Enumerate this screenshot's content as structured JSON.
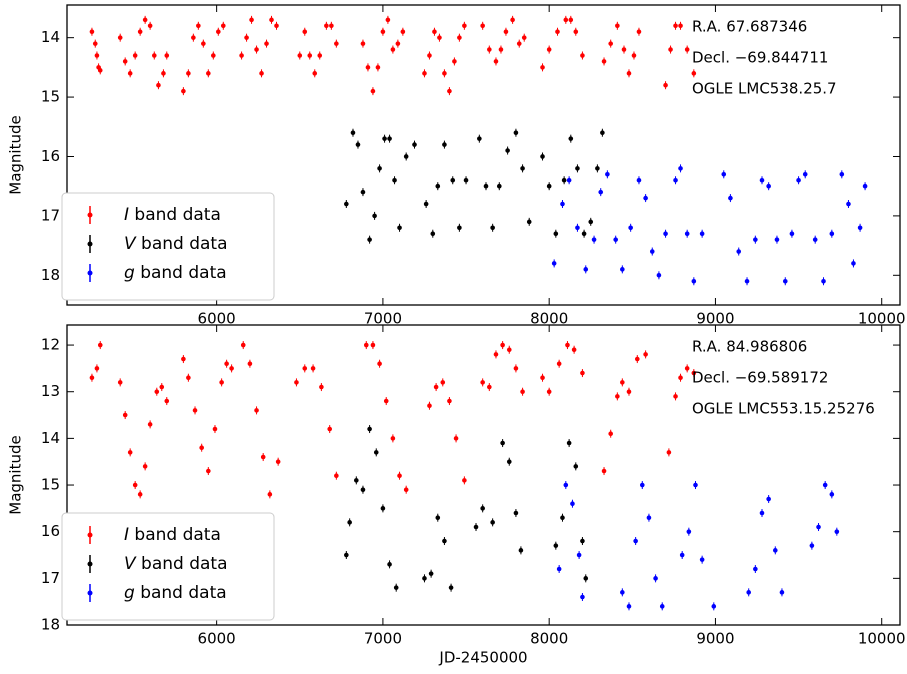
{
  "chart_data": [
    {
      "type": "scatter",
      "ylabel": "Magnitude",
      "xlim": [
        5100,
        10110
      ],
      "ylim": [
        13.45,
        18.5
      ],
      "y_inverted": true,
      "xticks": [
        6000,
        7000,
        8000,
        9000,
        10000
      ],
      "yticks": [
        14,
        15,
        16,
        17,
        18
      ],
      "legend": "lower left",
      "annotations": [
        "R.A. 67.687346",
        "Decl. −69.844711",
        "OGLE LMC538.25.7"
      ],
      "series": [
        {
          "name": "I band data",
          "color": "#ff0000",
          "x": [
            5250,
            5270,
            5280,
            5290,
            5300,
            5420,
            5450,
            5480,
            5510,
            5540,
            5570,
            5600,
            5625,
            5650,
            5680,
            5700,
            5800,
            5830,
            5860,
            5890,
            5920,
            5950,
            5980,
            6010,
            6040,
            6150,
            6180,
            6210,
            6240,
            6270,
            6300,
            6330,
            6360,
            6500,
            6530,
            6560,
            6590,
            6620,
            6660,
            6690,
            6720,
            6880,
            6910,
            6940,
            6970,
            7000,
            7030,
            7060,
            7090,
            7120,
            7250,
            7280,
            7310,
            7340,
            7370,
            7400,
            7430,
            7460,
            7490,
            7600,
            7640,
            7680,
            7710,
            7740,
            7780,
            7820,
            7850,
            7960,
            8000,
            8050,
            8100,
            8130,
            8160,
            8200,
            8330,
            8370,
            8410,
            8450,
            8480,
            8510,
            8540,
            8700,
            8730,
            8760,
            8790,
            8830,
            8870
          ],
          "values": [
            13.9,
            14.1,
            14.3,
            14.5,
            14.55,
            14.0,
            14.4,
            14.6,
            14.3,
            13.9,
            13.7,
            13.8,
            14.3,
            14.8,
            14.6,
            14.3,
            14.9,
            14.6,
            14.0,
            13.8,
            14.1,
            14.6,
            14.3,
            13.9,
            13.8,
            14.3,
            14.0,
            13.7,
            14.2,
            14.6,
            14.1,
            13.7,
            13.8,
            14.3,
            13.9,
            14.3,
            14.6,
            14.3,
            13.8,
            13.8,
            14.1,
            14.1,
            14.5,
            14.9,
            14.5,
            13.9,
            13.7,
            14.2,
            14.1,
            13.9,
            14.6,
            14.3,
            13.9,
            14.0,
            14.6,
            14.9,
            14.4,
            14.0,
            13.8,
            13.8,
            14.2,
            14.4,
            14.2,
            13.9,
            13.7,
            14.1,
            14.0,
            14.5,
            14.2,
            13.9,
            13.7,
            13.7,
            13.9,
            14.3,
            14.4,
            14.1,
            13.8,
            14.2,
            14.6,
            14.3,
            13.9,
            14.8,
            14.2,
            13.8,
            13.8,
            14.2,
            14.6
          ]
        },
        {
          "name": "V band data",
          "color": "#000000",
          "x": [
            6780,
            6820,
            6850,
            6880,
            6920,
            6950,
            6980,
            7010,
            7040,
            7070,
            7100,
            7140,
            7190,
            7260,
            7300,
            7330,
            7370,
            7420,
            7460,
            7500,
            7580,
            7620,
            7660,
            7700,
            7750,
            7800,
            7840,
            7880,
            7960,
            8000,
            8040,
            8090,
            8130,
            8170,
            8210,
            8250,
            8290,
            8320
          ],
          "values": [
            16.8,
            15.6,
            15.8,
            16.6,
            17.4,
            17.0,
            16.2,
            15.7,
            15.7,
            16.4,
            17.2,
            16.0,
            15.8,
            16.8,
            17.3,
            16.5,
            15.8,
            16.4,
            17.2,
            16.4,
            15.7,
            16.5,
            17.2,
            16.5,
            15.9,
            15.6,
            16.2,
            17.1,
            16.0,
            16.5,
            17.3,
            16.4,
            15.7,
            16.2,
            17.3,
            17.1,
            16.2,
            15.6
          ]
        },
        {
          "name": "g band data",
          "color": "#0000ff",
          "x": [
            8030,
            8080,
            8120,
            8170,
            8220,
            8270,
            8310,
            8350,
            8400,
            8440,
            8490,
            8540,
            8580,
            8620,
            8660,
            8700,
            8760,
            8790,
            8830,
            8870,
            8920,
            9050,
            9090,
            9140,
            9190,
            9240,
            9280,
            9320,
            9370,
            9420,
            9460,
            9500,
            9540,
            9600,
            9650,
            9700,
            9760,
            9800,
            9830,
            9870,
            9900
          ],
          "values": [
            17.8,
            16.8,
            16.4,
            17.2,
            17.9,
            17.4,
            16.6,
            16.3,
            17.4,
            17.9,
            17.2,
            16.4,
            16.7,
            17.6,
            18.0,
            17.3,
            16.4,
            16.2,
            17.3,
            18.1,
            17.3,
            16.3,
            16.7,
            17.6,
            18.1,
            17.4,
            16.4,
            16.5,
            17.4,
            18.1,
            17.3,
            16.4,
            16.3,
            17.4,
            18.1,
            17.3,
            16.3,
            16.8,
            17.8,
            17.2,
            16.5
          ]
        }
      ]
    },
    {
      "type": "scatter",
      "ylabel": "Magnitude",
      "xlabel": "JD-2450000",
      "xlim": [
        5100,
        10110
      ],
      "ylim": [
        11.57,
        18
      ],
      "y_inverted": true,
      "xticks": [
        6000,
        7000,
        8000,
        9000,
        10000
      ],
      "yticks": [
        12,
        13,
        14,
        15,
        16,
        17,
        18
      ],
      "legend": "lower left",
      "annotations": [
        "R.A. 84.986806",
        "Decl. −69.589172",
        "OGLE LMC553.15.25276"
      ],
      "series": [
        {
          "name": "I band data",
          "color": "#ff0000",
          "x": [
            5250,
            5280,
            5300,
            5420,
            5450,
            5480,
            5510,
            5540,
            5570,
            5600,
            5640,
            5670,
            5700,
            5800,
            5830,
            5870,
            5910,
            5950,
            5990,
            6030,
            6060,
            6090,
            6160,
            6200,
            6240,
            6280,
            6320,
            6370,
            6480,
            6530,
            6580,
            6630,
            6680,
            6720,
            6900,
            6940,
            6980,
            7020,
            7060,
            7100,
            7140,
            7280,
            7320,
            7360,
            7400,
            7440,
            7490,
            7600,
            7640,
            7680,
            7720,
            7760,
            7800,
            7840,
            7960,
            8000,
            8060,
            8110,
            8150,
            8200,
            8330,
            8370,
            8410,
            8440,
            8480,
            8530,
            8580,
            8720,
            8760,
            8790,
            8830,
            8870
          ],
          "values": [
            12.7,
            12.5,
            12.0,
            12.8,
            13.5,
            14.3,
            15.0,
            15.2,
            14.6,
            13.7,
            13.0,
            12.9,
            13.2,
            12.3,
            12.7,
            13.4,
            14.2,
            14.7,
            13.8,
            12.8,
            12.4,
            12.5,
            12.0,
            12.4,
            13.4,
            14.4,
            15.2,
            14.5,
            12.8,
            12.5,
            12.5,
            12.9,
            13.8,
            14.8,
            12.0,
            12.0,
            12.4,
            13.2,
            14.0,
            14.8,
            15.1,
            13.3,
            12.9,
            12.8,
            13.2,
            14.0,
            14.9,
            12.8,
            12.9,
            12.2,
            12.0,
            12.1,
            12.5,
            13.0,
            12.7,
            13.0,
            12.4,
            12.0,
            12.1,
            12.6,
            14.7,
            13.9,
            13.1,
            12.8,
            13.0,
            12.3,
            12.2,
            14.3,
            13.1,
            12.7,
            12.5,
            12.6
          ]
        },
        {
          "name": "V band data",
          "color": "#000000",
          "x": [
            6780,
            6800,
            6840,
            6880,
            6920,
            6960,
            7000,
            7040,
            7080,
            7250,
            7290,
            7330,
            7370,
            7410,
            7560,
            7600,
            7660,
            7720,
            7760,
            7800,
            7830,
            8040,
            8080,
            8120,
            8160,
            8200,
            8220
          ],
          "values": [
            16.5,
            15.8,
            14.9,
            15.1,
            13.8,
            14.3,
            15.5,
            16.7,
            17.2,
            17.0,
            16.9,
            15.7,
            16.2,
            17.2,
            15.9,
            15.5,
            15.8,
            14.1,
            14.5,
            15.6,
            16.4,
            16.3,
            15.7,
            14.1,
            14.6,
            16.2,
            17.0
          ]
        },
        {
          "name": "g band data",
          "color": "#0000ff",
          "x": [
            8060,
            8100,
            8140,
            8180,
            8200,
            8440,
            8480,
            8520,
            8560,
            8600,
            8640,
            8680,
            8800,
            8840,
            8880,
            8920,
            8990,
            9200,
            9240,
            9280,
            9320,
            9360,
            9400,
            9580,
            9620,
            9660,
            9700,
            9730
          ],
          "values": [
            16.8,
            15.0,
            15.4,
            16.5,
            17.4,
            17.3,
            17.6,
            16.2,
            15.0,
            15.7,
            17.0,
            17.6,
            16.5,
            16.0,
            15.0,
            16.6,
            17.6,
            17.3,
            16.8,
            15.6,
            15.3,
            16.4,
            17.3,
            16.3,
            15.9,
            15.0,
            15.2,
            16.0
          ]
        }
      ]
    }
  ]
}
